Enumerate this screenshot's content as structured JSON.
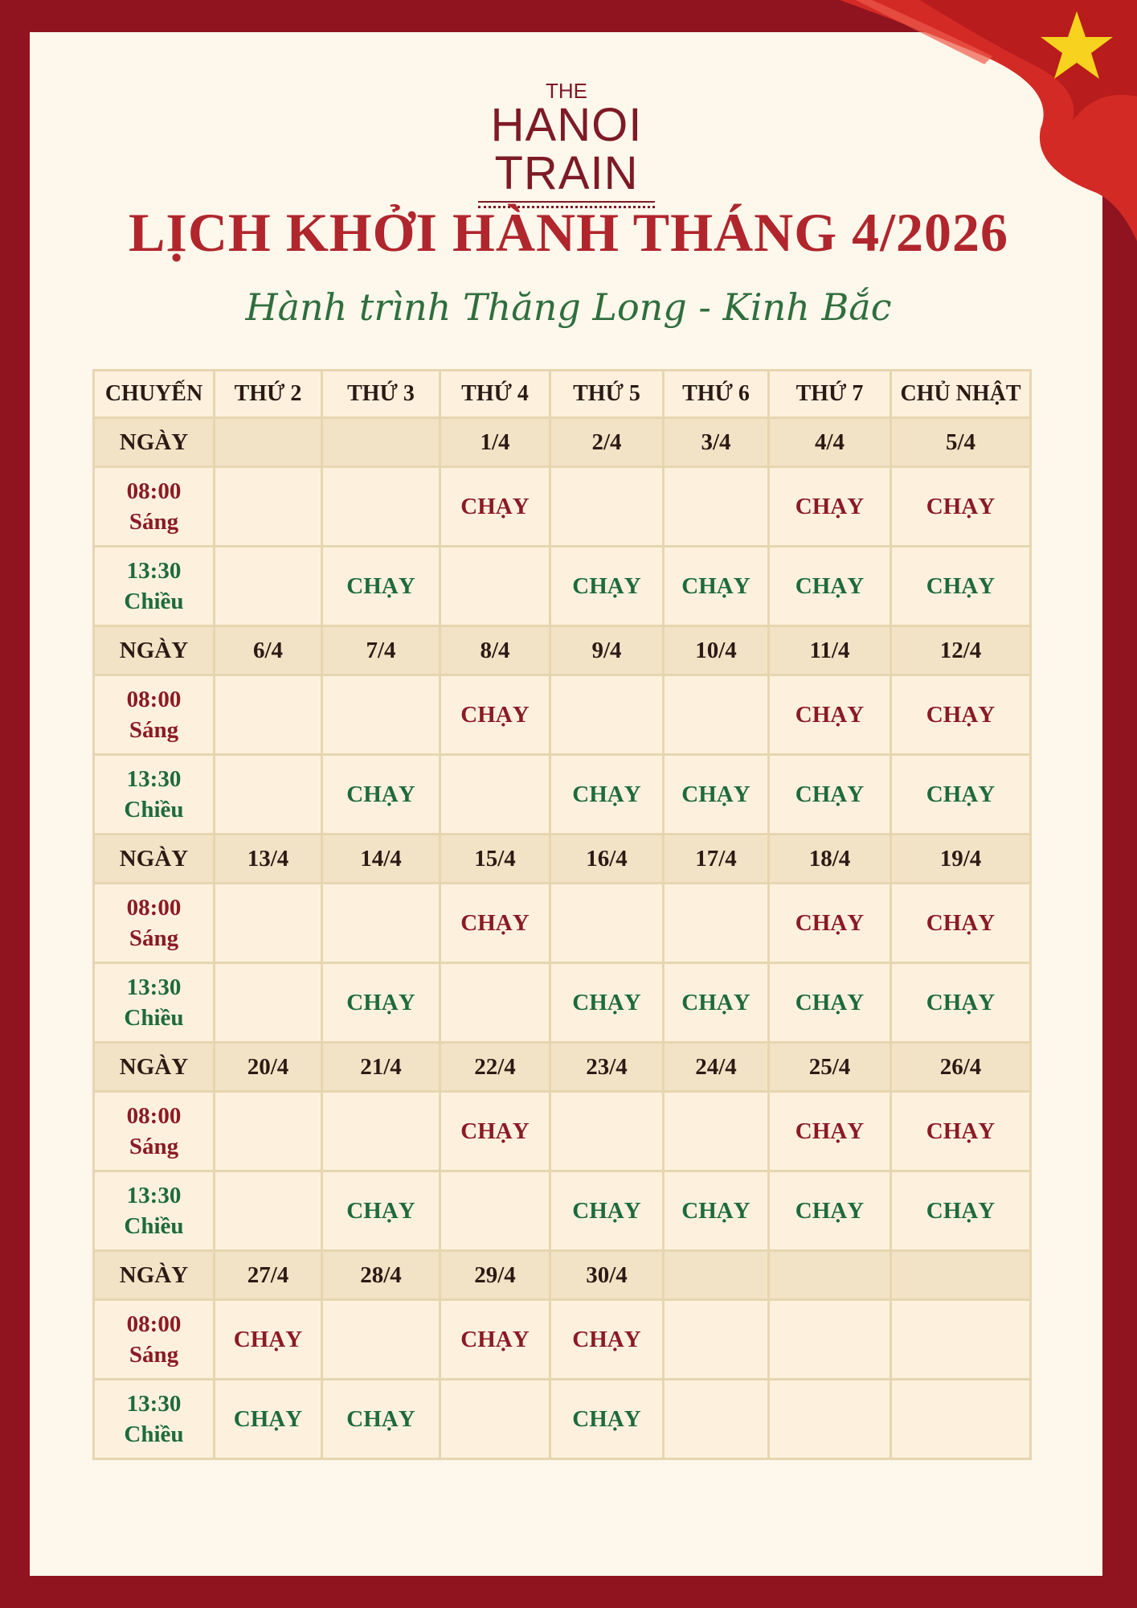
{
  "logo": {
    "line1": "THE",
    "line2": "HANOI TRAIN"
  },
  "title": "LỊCH KHỞI HÀNH THÁNG 4/2026",
  "subtitle": "Hành trình Thăng Long - Kinh Bắc",
  "colors": {
    "frame": "#8f1420",
    "title": "#b0262c",
    "morning": "#8b1a24",
    "afternoon": "#1e6b3a",
    "flag_star": "#f7d21e"
  },
  "table": {
    "headers": [
      "CHUYẾN",
      "THỨ 2",
      "THỨ 3",
      "THỨ 4",
      "THỨ 5",
      "THỨ 6",
      "THỨ 7",
      "CHỦ NHẬT"
    ],
    "date_label": "NGÀY",
    "morning": {
      "time": "08:00",
      "label": "Sáng"
    },
    "afternoon": {
      "time": "13:30",
      "label": "Chiều"
    },
    "weeks": [
      {
        "dates": [
          "",
          "",
          "1/4",
          "2/4",
          "3/4",
          "4/4",
          "5/4"
        ],
        "morning": [
          "",
          "",
          "CHẠY",
          "",
          "",
          "CHẠY",
          "CHẠY"
        ],
        "afternoon": [
          "",
          "CHẠY",
          "",
          "CHẠY",
          "CHẠY",
          "CHẠY",
          "CHẠY"
        ]
      },
      {
        "dates": [
          "6/4",
          "7/4",
          "8/4",
          "9/4",
          "10/4",
          "11/4",
          "12/4"
        ],
        "morning": [
          "",
          "",
          "CHẠY",
          "",
          "",
          "CHẠY",
          "CHẠY"
        ],
        "afternoon": [
          "",
          "CHẠY",
          "",
          "CHẠY",
          "CHẠY",
          "CHẠY",
          "CHẠY"
        ]
      },
      {
        "dates": [
          "13/4",
          "14/4",
          "15/4",
          "16/4",
          "17/4",
          "18/4",
          "19/4"
        ],
        "morning": [
          "",
          "",
          "CHẠY",
          "",
          "",
          "CHẠY",
          "CHẠY"
        ],
        "afternoon": [
          "",
          "CHẠY",
          "",
          "CHẠY",
          "CHẠY",
          "CHẠY",
          "CHẠY"
        ]
      },
      {
        "dates": [
          "20/4",
          "21/4",
          "22/4",
          "23/4",
          "24/4",
          "25/4",
          "26/4"
        ],
        "morning": [
          "",
          "",
          "CHẠY",
          "",
          "",
          "CHẠY",
          "CHẠY"
        ],
        "afternoon": [
          "",
          "CHẠY",
          "",
          "CHẠY",
          "CHẠY",
          "CHẠY",
          "CHẠY"
        ]
      },
      {
        "dates": [
          "27/4",
          "28/4",
          "29/4",
          "30/4",
          "",
          "",
          ""
        ],
        "morning": [
          "CHẠY",
          "",
          "CHẠY",
          "CHẠY",
          "",
          "",
          ""
        ],
        "afternoon": [
          "CHẠY",
          "CHẠY",
          "",
          "CHẠY",
          "",
          "",
          ""
        ]
      }
    ]
  }
}
